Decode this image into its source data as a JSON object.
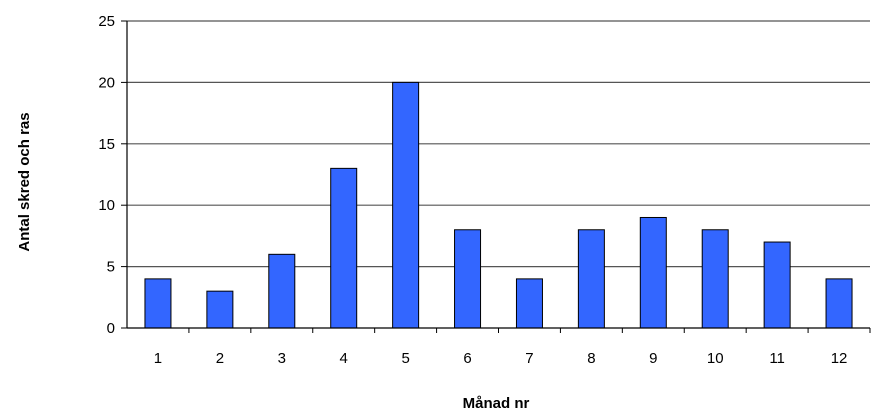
{
  "chart_data": {
    "type": "bar",
    "title": "",
    "xlabel": "Månad nr",
    "ylabel": "Antal skred och ras",
    "categories": [
      "1",
      "2",
      "3",
      "4",
      "5",
      "6",
      "7",
      "8",
      "9",
      "10",
      "11",
      "12"
    ],
    "values": [
      4,
      3,
      6,
      13,
      20,
      8,
      4,
      8,
      9,
      8,
      7,
      4
    ],
    "ylim": [
      0,
      25
    ],
    "yticks": [
      0,
      5,
      10,
      15,
      20,
      25
    ],
    "grid": true,
    "bar_color": "#3366ff",
    "bar_edge_color": "#000000",
    "grid_color": "#555555"
  }
}
